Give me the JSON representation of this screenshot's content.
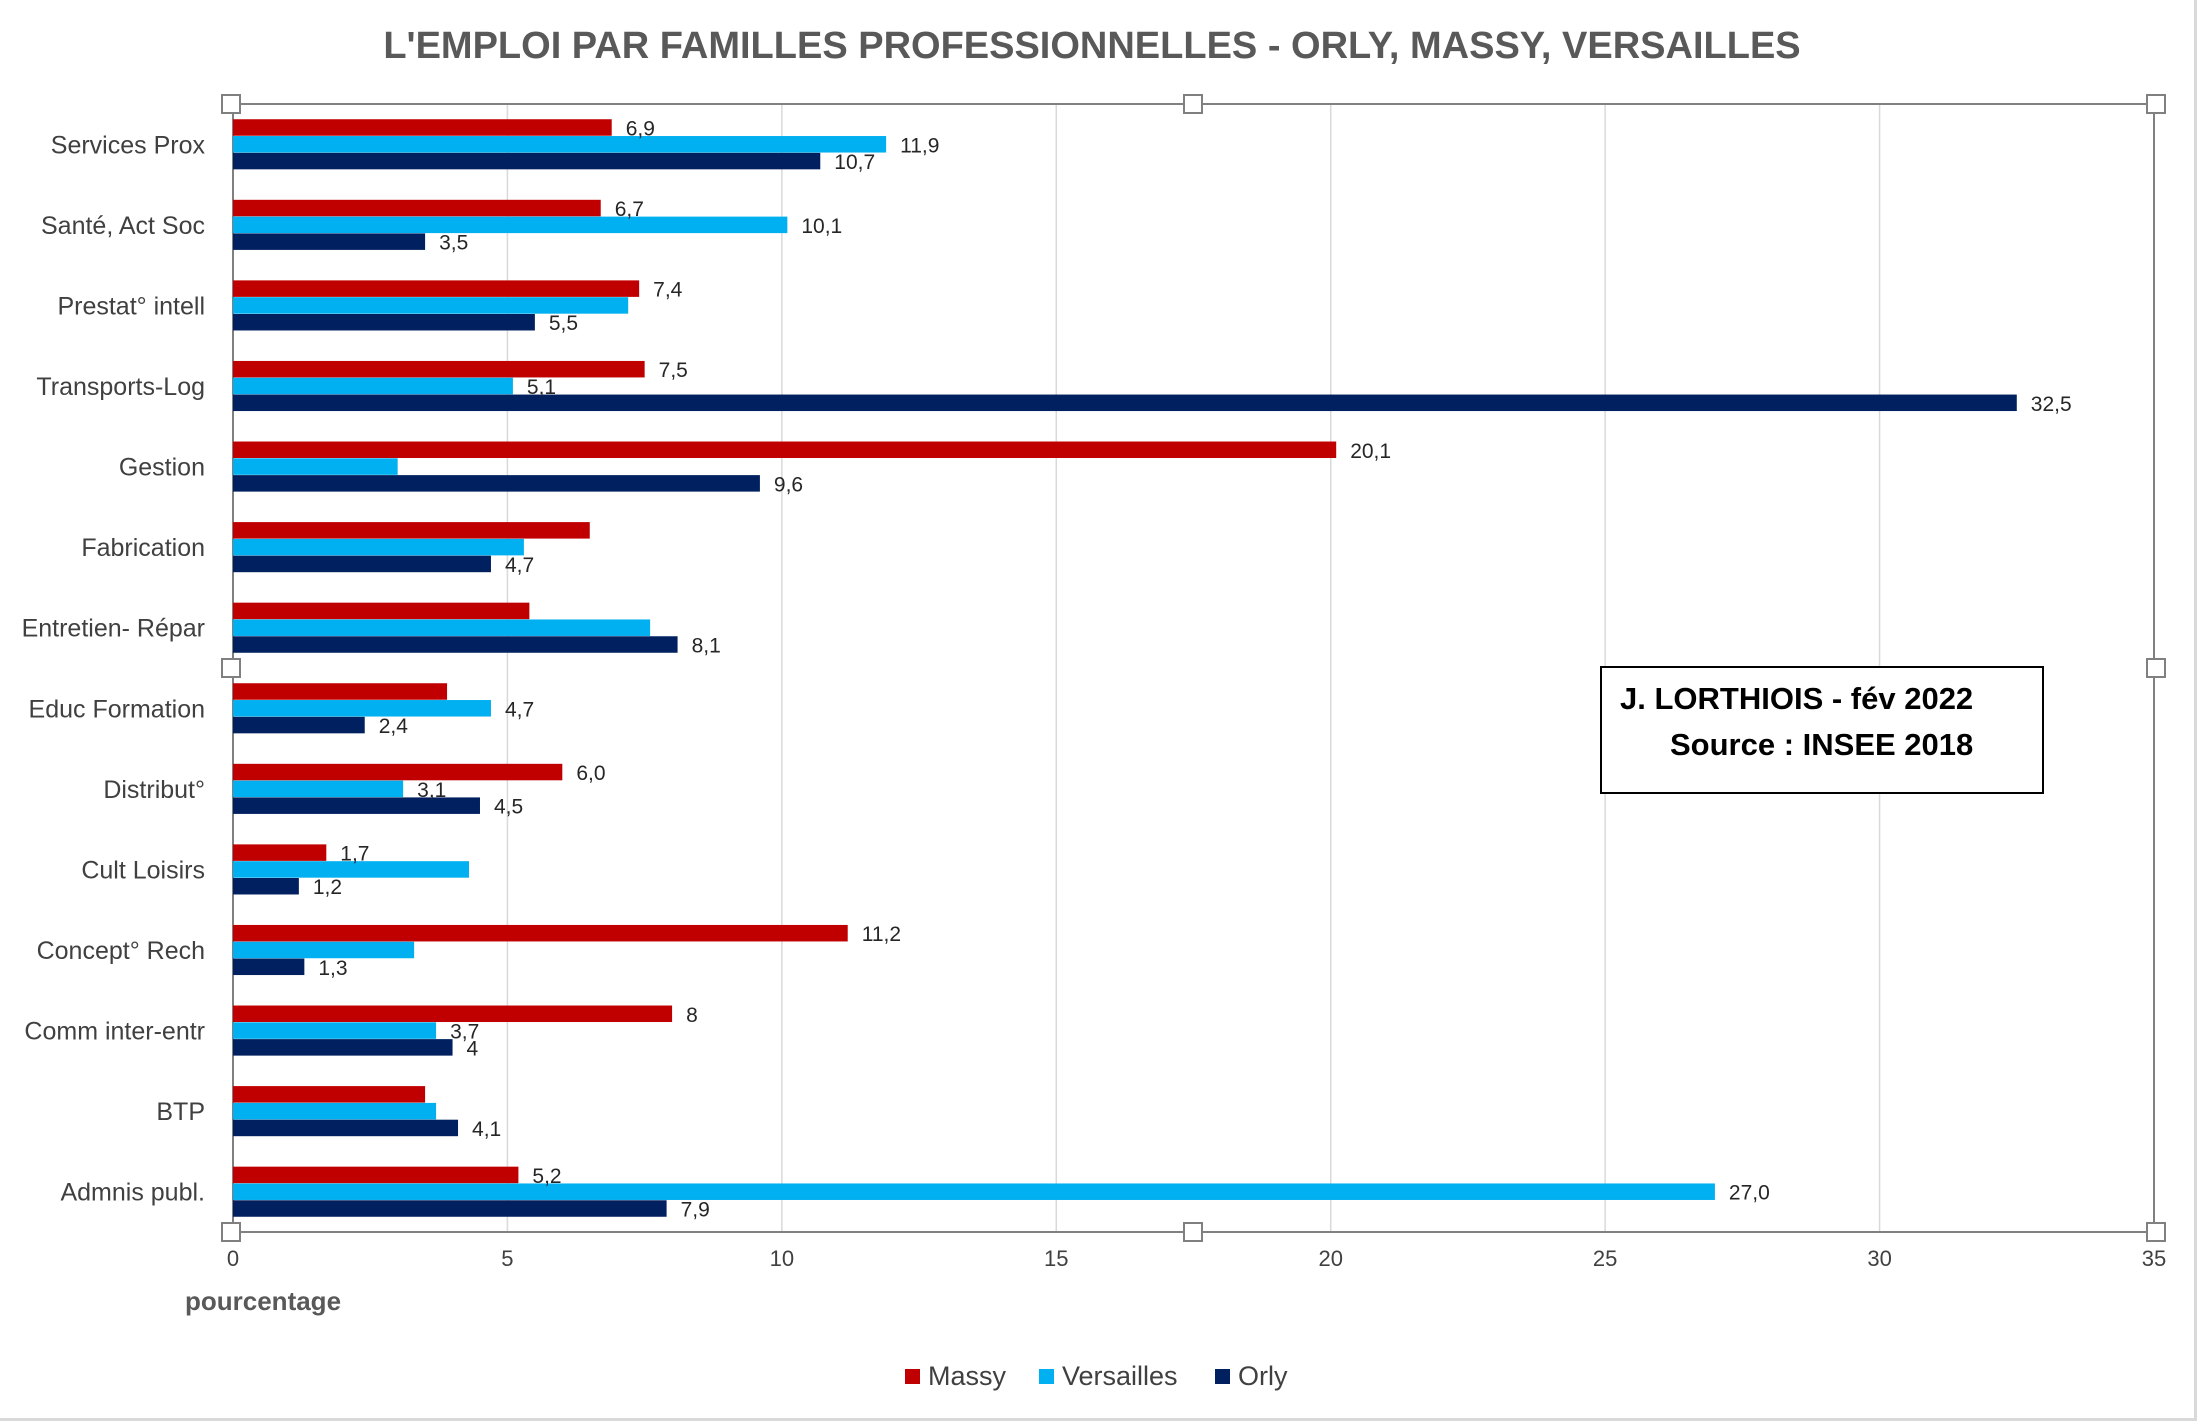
{
  "colors": {
    "massy": "#C00000",
    "versailles": "#00B0F0",
    "orly": "#002060",
    "grid": "#D9D9D9",
    "axis": "#808080",
    "handle_border": "#808080"
  },
  "chart_data": {
    "type": "bar",
    "orientation": "horizontal",
    "title": "L'EMPLOI PAR FAMILLES PROFESSIONNELLES - ORLY, MASSY, VERSAILLES",
    "xlabel": "pourcentage",
    "ylabel": "",
    "xlim": [
      0,
      35
    ],
    "xticks": [
      0,
      5,
      10,
      15,
      20,
      25,
      30,
      35
    ],
    "grid": true,
    "legend_position": "bottom",
    "categories": [
      "Services Prox",
      "Santé, Act Soc",
      "Prestat° intell",
      "Transports-Log",
      "Gestion",
      "Fabrication",
      "Entretien- Répar",
      "Educ Formation",
      "Distribut°",
      "Cult Loisirs",
      "Concept° Rech",
      "Comm inter-entr",
      "BTP",
      "Admnis publ."
    ],
    "series": [
      {
        "name": "Massy",
        "color": "#C00000",
        "values": [
          6.9,
          6.7,
          7.4,
          7.5,
          20.1,
          6.5,
          5.4,
          3.9,
          6.0,
          1.7,
          11.2,
          8,
          3.5,
          5.2
        ],
        "labels": [
          "6,9",
          "6,7",
          "7,4",
          "7,5",
          "20,1",
          "",
          "",
          "",
          "6,0",
          "1,7",
          "11,2",
          "8",
          "",
          "5,2"
        ]
      },
      {
        "name": "Versailles",
        "color": "#00B0F0",
        "values": [
          11.9,
          10.1,
          7.2,
          5.1,
          3.0,
          5.3,
          7.6,
          4.7,
          3.1,
          4.3,
          3.3,
          3.7,
          3.7,
          27.0
        ],
        "labels": [
          "11,9",
          "10,1",
          "",
          "5,1",
          "",
          "",
          "",
          "4,7",
          "3,1",
          "",
          "",
          "3,7",
          "",
          "27,0"
        ]
      },
      {
        "name": "Orly",
        "color": "#002060",
        "values": [
          10.7,
          3.5,
          5.5,
          32.5,
          9.6,
          4.7,
          8.1,
          2.4,
          4.5,
          1.2,
          1.3,
          4,
          4.1,
          7.9
        ],
        "labels": [
          "10,7",
          "3,5",
          "5,5",
          "32,5",
          "9,6",
          "4,7",
          "8,1",
          "2,4",
          "4,5",
          "1,2",
          "1,3",
          "4",
          "4,1",
          "7,9"
        ]
      }
    ],
    "annotation": [
      "J. LORTHIOIS - fév 2022",
      "Source : INSEE 2018"
    ]
  }
}
